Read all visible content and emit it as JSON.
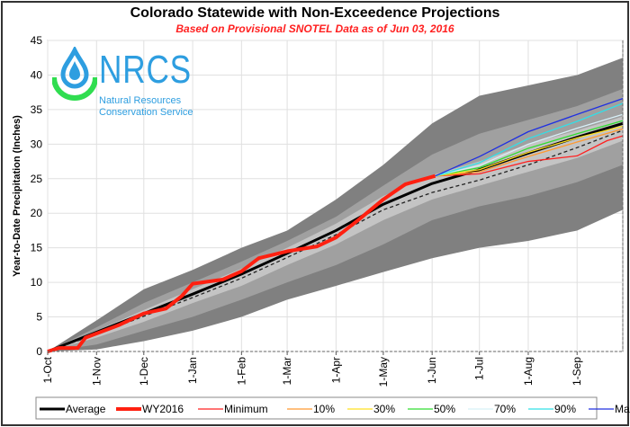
{
  "chart_data": {
    "type": "area",
    "title": "Colorado Statewide with Non-Exceedence Projections",
    "subtitle": "Based on Provisional SNOTEL Data as of Jun 03, 2016",
    "ylabel": "Year-to-Date Precipitation (Inches)",
    "xlabel": "",
    "ylim": [
      0,
      45
    ],
    "yticks": [
      0,
      5,
      10,
      15,
      20,
      25,
      30,
      35,
      40,
      45
    ],
    "xlim": [
      "2015-10-01",
      "2016-09-30"
    ],
    "xticks": [
      {
        "date": "2015-10-01",
        "label": "1-Oct"
      },
      {
        "date": "2015-11-01",
        "label": "1-Nov"
      },
      {
        "date": "2015-12-01",
        "label": "1-Dec"
      },
      {
        "date": "2016-01-01",
        "label": "1-Jan"
      },
      {
        "date": "2016-02-01",
        "label": "1-Feb"
      },
      {
        "date": "2016-03-01",
        "label": "1-Mar"
      },
      {
        "date": "2016-04-01",
        "label": "1-Apr"
      },
      {
        "date": "2016-05-01",
        "label": "1-May"
      },
      {
        "date": "2016-06-01",
        "label": "1-Jun"
      },
      {
        "date": "2016-07-01",
        "label": "1-Jul"
      },
      {
        "date": "2016-08-01",
        "label": "1-Aug"
      },
      {
        "date": "2016-09-01",
        "label": "1-Sep"
      }
    ],
    "grid": true,
    "legend_placement": "bottom",
    "band_dates": [
      "2015-10-01",
      "2015-11-01",
      "2015-12-01",
      "2016-01-01",
      "2016-02-01",
      "2016-03-01",
      "2016-04-01",
      "2016-05-01",
      "2016-06-01",
      "2016-07-01",
      "2016-08-01",
      "2016-09-01",
      "2016-09-30"
    ],
    "bands": [
      {
        "color": "#808080",
        "upper": [
          0,
          4.5,
          9,
          11.8,
          15,
          17.5,
          22,
          27,
          33,
          37,
          38.5,
          40,
          42.5
        ],
        "lower": [
          0,
          0.3,
          1.5,
          3,
          5,
          7.5,
          9.5,
          11.5,
          13.5,
          15,
          16,
          17.5,
          20.5
        ]
      },
      {
        "color": "#a0a0a0",
        "upper": [
          0,
          3.5,
          7,
          10,
          13,
          16,
          19.5,
          24,
          28.5,
          31.5,
          33.5,
          35.5,
          38
        ],
        "lower": [
          0,
          1,
          3,
          5,
          7.5,
          10,
          12.5,
          15.5,
          19,
          21,
          22.5,
          24.5,
          27
        ]
      },
      {
        "color": "#c4c4c4",
        "upper": [
          0,
          3,
          6,
          9,
          12,
          15,
          18.5,
          22.5,
          25.5,
          27.5,
          30,
          32,
          34
        ],
        "lower": [
          0,
          2,
          4.3,
          7,
          9.5,
          12.5,
          15.5,
          19,
          22,
          24,
          26,
          28,
          30.5
        ]
      }
    ],
    "series": [
      {
        "name": "Average",
        "color": "#000000",
        "width": 3,
        "dates": [
          "2015-10-01",
          "2015-11-01",
          "2015-12-01",
          "2016-01-01",
          "2016-02-01",
          "2016-03-01",
          "2016-04-01",
          "2016-05-01",
          "2016-06-01",
          "2016-07-01",
          "2016-08-01",
          "2016-09-01",
          "2016-09-30"
        ],
        "values": [
          0,
          2.8,
          5.5,
          8.3,
          11.2,
          14.2,
          17.5,
          21.3,
          24.3,
          26.3,
          28.7,
          31,
          33
        ]
      },
      {
        "name": "",
        "color": "#222222",
        "width": 1.3,
        "dash": "4,3",
        "dates": [
          "2015-10-01",
          "2015-11-01",
          "2015-12-01",
          "2016-01-01",
          "2016-02-01",
          "2016-03-01",
          "2016-04-01",
          "2016-05-01",
          "2016-06-01",
          "2016-07-01",
          "2016-08-01",
          "2016-09-01",
          "2016-09-30"
        ],
        "values": [
          0,
          2.5,
          5.1,
          7.8,
          10.6,
          13.6,
          16.9,
          20.5,
          23,
          24.8,
          27,
          29.5,
          32
        ]
      },
      {
        "name": "WY2016",
        "color": "#ff2010",
        "width": 4,
        "dates": [
          "2015-10-01",
          "2015-10-08",
          "2015-10-20",
          "2015-10-25",
          "2015-11-01",
          "2015-11-15",
          "2015-12-01",
          "2015-12-15",
          "2015-12-25",
          "2016-01-01",
          "2016-01-20",
          "2016-02-01",
          "2016-02-12",
          "2016-03-01",
          "2016-03-20",
          "2016-04-01",
          "2016-04-15",
          "2016-05-01",
          "2016-05-15",
          "2016-06-03"
        ],
        "values": [
          0,
          0.5,
          0.5,
          2,
          2.6,
          3.8,
          5.5,
          6.2,
          8,
          9.8,
          10.4,
          11.6,
          13.5,
          14.5,
          15.2,
          16.5,
          19,
          22,
          24.2,
          25.4
        ]
      },
      {
        "name": "Minimum",
        "color": "#ff2020",
        "width": 1.3,
        "dates": [
          "2016-06-03",
          "2016-07-01",
          "2016-08-01",
          "2016-09-01",
          "2016-09-20",
          "2016-09-30"
        ],
        "values": [
          25.4,
          25.7,
          27.5,
          28.3,
          30.5,
          31.2
        ]
      },
      {
        "name": "10%",
        "color": "#ff9930",
        "width": 1.3,
        "dates": [
          "2016-06-03",
          "2016-07-01",
          "2016-08-01",
          "2016-09-01",
          "2016-09-30"
        ],
        "values": [
          25.4,
          26,
          28.2,
          30.3,
          32.2
        ]
      },
      {
        "name": "30%",
        "color": "#ffe020",
        "width": 1.3,
        "dates": [
          "2016-06-03",
          "2016-07-01",
          "2016-08-01",
          "2016-09-01",
          "2016-09-30"
        ],
        "values": [
          25.4,
          26.3,
          28.8,
          30.9,
          32.6
        ]
      },
      {
        "name": "50%",
        "color": "#30dd30",
        "width": 1.3,
        "dates": [
          "2016-06-03",
          "2016-07-01",
          "2016-08-01",
          "2016-09-01",
          "2016-09-30"
        ],
        "values": [
          25.4,
          26.6,
          29.4,
          31.5,
          33.4
        ]
      },
      {
        "name": "70%",
        "color": "#d8f0f8",
        "width": 1.3,
        "dates": [
          "2016-06-03",
          "2016-07-01",
          "2016-08-01",
          "2016-09-01",
          "2016-09-30"
        ],
        "values": [
          25.4,
          26.9,
          30,
          32.3,
          34.3
        ]
      },
      {
        "name": "90%",
        "color": "#30e0e8",
        "width": 1.3,
        "dates": [
          "2016-06-03",
          "2016-07-01",
          "2016-08-01",
          "2016-09-01",
          "2016-09-30"
        ],
        "values": [
          25.4,
          27.3,
          30.8,
          33.3,
          35.9
        ]
      },
      {
        "name": "Maximum",
        "color": "#2030e0",
        "width": 1.3,
        "dates": [
          "2016-06-03",
          "2016-07-01",
          "2016-08-01",
          "2016-09-01",
          "2016-09-30"
        ],
        "values": [
          25.4,
          28.2,
          31.8,
          34.3,
          36.6
        ]
      }
    ],
    "legend": [
      {
        "label": "Average",
        "color": "#000000",
        "width": 3
      },
      {
        "label": "WY2016",
        "color": "#ff2010",
        "width": 4
      },
      {
        "label": "Minimum",
        "color": "#ff2020",
        "width": 1.3
      },
      {
        "label": "10%",
        "color": "#ff9930",
        "width": 1.3
      },
      {
        "label": "30%",
        "color": "#ffe020",
        "width": 1.3
      },
      {
        "label": "50%",
        "color": "#30dd30",
        "width": 1.3
      },
      {
        "label": "70%",
        "color": "#d8f0f8",
        "width": 1.3
      },
      {
        "label": "90%",
        "color": "#30e0e8",
        "width": 1.3
      },
      {
        "label": "Maximum",
        "color": "#2030e0",
        "width": 1.3
      }
    ]
  },
  "logo": {
    "name": "NRCS",
    "line1": "Natural Resources",
    "line2": "Conservation Service",
    "color": "#2e9ee0",
    "accent": "#30dd50"
  }
}
